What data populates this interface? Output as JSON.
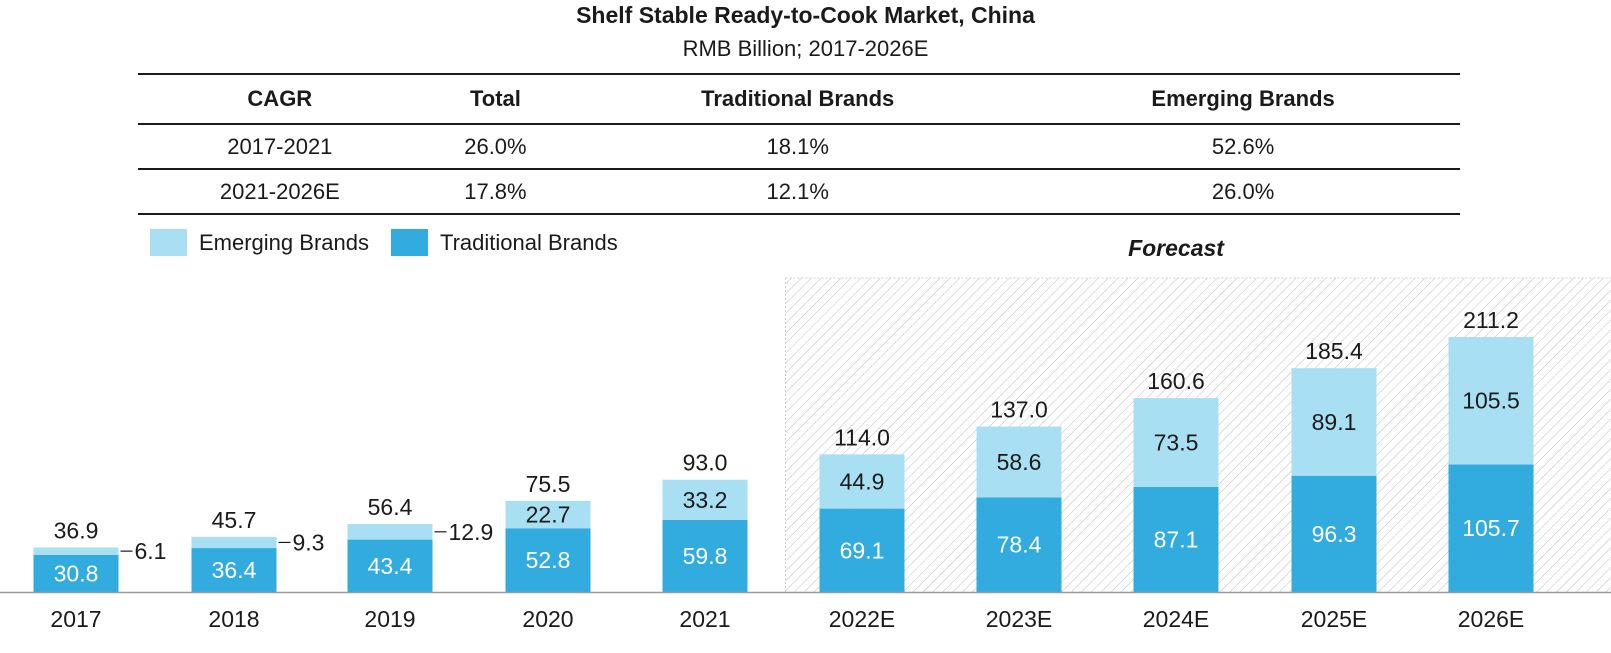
{
  "title": "Shelf Stable Ready-to-Cook Market, China",
  "subtitle": "RMB Billion; 2017-2026E",
  "cagr_table": {
    "headers": [
      "CAGR",
      "Total",
      "Traditional Brands",
      "Emerging Brands"
    ],
    "rows": [
      [
        "2017-2021",
        "26.0%",
        "18.1%",
        "52.6%"
      ],
      [
        "2021-2026E",
        "17.8%",
        "12.1%",
        "26.0%"
      ]
    ]
  },
  "legend": {
    "emerging": "Emerging Brands",
    "traditional": "Traditional Brands"
  },
  "forecast_label": "Forecast",
  "colors": {
    "traditional": "#32ABDF",
    "emerging": "#A8DFF3",
    "forecast_hatch": "#bdbdbd"
  },
  "chart_data": {
    "type": "bar",
    "stacked": true,
    "categories": [
      "2017",
      "2018",
      "2019",
      "2020",
      "2021",
      "2022E",
      "2023E",
      "2024E",
      "2025E",
      "2026E"
    ],
    "series": [
      {
        "name": "Traditional Brands",
        "values": [
          30.8,
          36.4,
          43.4,
          52.8,
          59.8,
          69.1,
          78.4,
          87.1,
          96.3,
          105.7
        ]
      },
      {
        "name": "Emerging Brands",
        "values": [
          6.1,
          9.3,
          12.9,
          22.7,
          33.2,
          44.9,
          58.6,
          73.5,
          89.1,
          105.5
        ]
      }
    ],
    "totals": [
      36.9,
      45.7,
      56.4,
      75.5,
      93.0,
      114.0,
      137.0,
      160.6,
      185.4,
      211.2
    ],
    "total_labels": [
      "36.9",
      "45.7",
      "56.4",
      "75.5",
      "93.0",
      "114.0",
      "137.0",
      "160.6",
      "185.4",
      "211.2"
    ],
    "traditional_labels": [
      "30.8",
      "36.4",
      "43.4",
      "52.8",
      "59.8",
      "69.1",
      "78.4",
      "87.1",
      "96.3",
      "105.7"
    ],
    "emerging_labels": [
      "6.1",
      "9.3",
      "12.9",
      "22.7",
      "33.2",
      "44.9",
      "58.6",
      "73.5",
      "89.1",
      "105.5"
    ],
    "forecast_from_category": "2022E",
    "legend_position": "top-left",
    "grid": false,
    "ylim": [
      0,
      211.2
    ]
  }
}
